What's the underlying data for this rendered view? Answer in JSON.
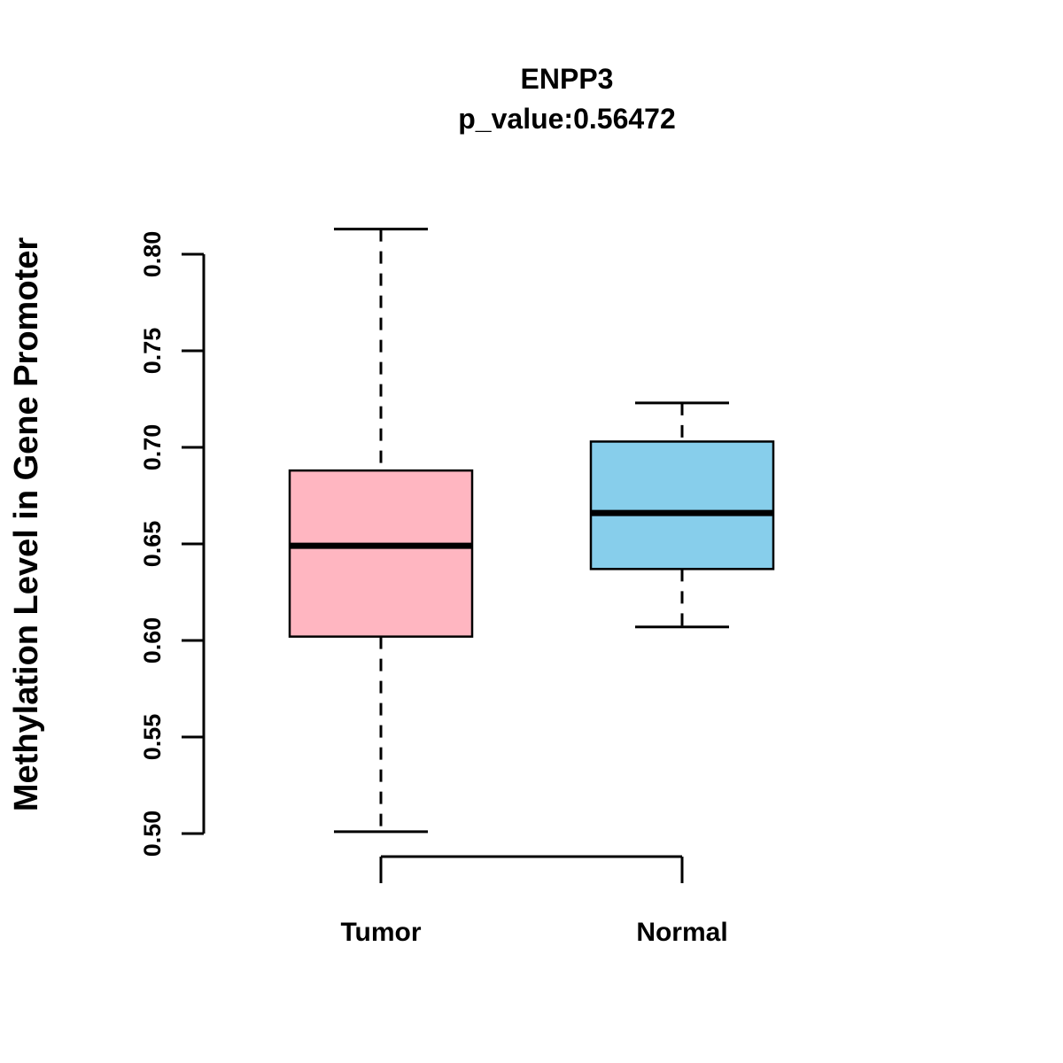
{
  "title": {
    "gene": "ENPP3",
    "pvalue_line": "p_value:0.56472"
  },
  "axes": {
    "y_label": "Methylation Level in Gene Promoter",
    "y_tick_labels": [
      "0.50",
      "0.55",
      "0.60",
      "0.65",
      "0.70",
      "0.75",
      "0.80"
    ],
    "x_categories": [
      "Tumor",
      "Normal"
    ]
  },
  "chart_data": {
    "type": "boxplot",
    "title": "ENPP3",
    "subtitle": "p_value:0.56472",
    "ylabel": "Methylation Level in Gene Promoter",
    "ylim": [
      0.5,
      0.8
    ],
    "y_ticks": [
      0.5,
      0.55,
      0.6,
      0.65,
      0.7,
      0.75,
      0.8
    ],
    "y_tick_labels": [
      "0.50",
      "0.55",
      "0.60",
      "0.65",
      "0.70",
      "0.75",
      "0.80"
    ],
    "categories": [
      "Tumor",
      "Normal"
    ],
    "grid": false,
    "legend": "none",
    "series": [
      {
        "name": "Tumor",
        "min": 0.501,
        "q1": 0.602,
        "median": 0.649,
        "q3": 0.688,
        "max": 0.813,
        "color": "#FFB6C1"
      },
      {
        "name": "Normal",
        "min": 0.607,
        "q1": 0.637,
        "median": 0.666,
        "q3": 0.703,
        "max": 0.723,
        "color": "#87CEEB"
      }
    ],
    "colors": {
      "tumor_fill": "#FFB6C1",
      "normal_fill": "#87CEEB",
      "stroke": "#000000"
    }
  }
}
